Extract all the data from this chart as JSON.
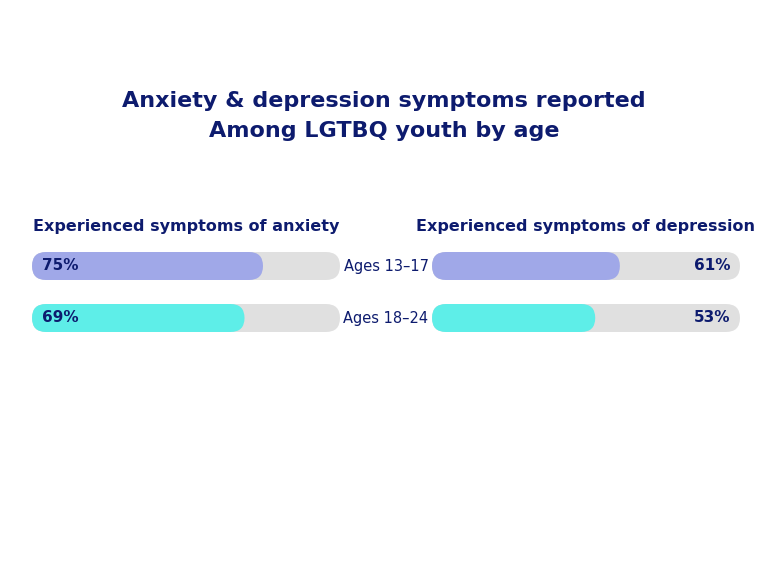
{
  "title_line1": "Anxiety & depression symptoms reported",
  "title_line2": "Among LGTBQ youth by age",
  "title_color": "#0d1b6e",
  "title_fontsize": 16,
  "left_header": "Experienced symptoms of anxiety",
  "right_header": "Experienced symptoms of depression",
  "header_color": "#0d1b6e",
  "header_fontsize": 11.5,
  "age_labels": [
    "Ages 13–17",
    "Ages 18–24"
  ],
  "age_label_color": "#0d1b6e",
  "age_label_fontsize": 10.5,
  "anxiety_values": [
    75,
    69
  ],
  "depression_values": [
    61,
    53
  ],
  "color_13_17": "#a0a8e8",
  "color_18_24": "#5eeee8",
  "bar_bg_color": "#e0e0e0",
  "value_color": "#0d1b6e",
  "value_fontsize": 11,
  "background_color": "#ffffff"
}
